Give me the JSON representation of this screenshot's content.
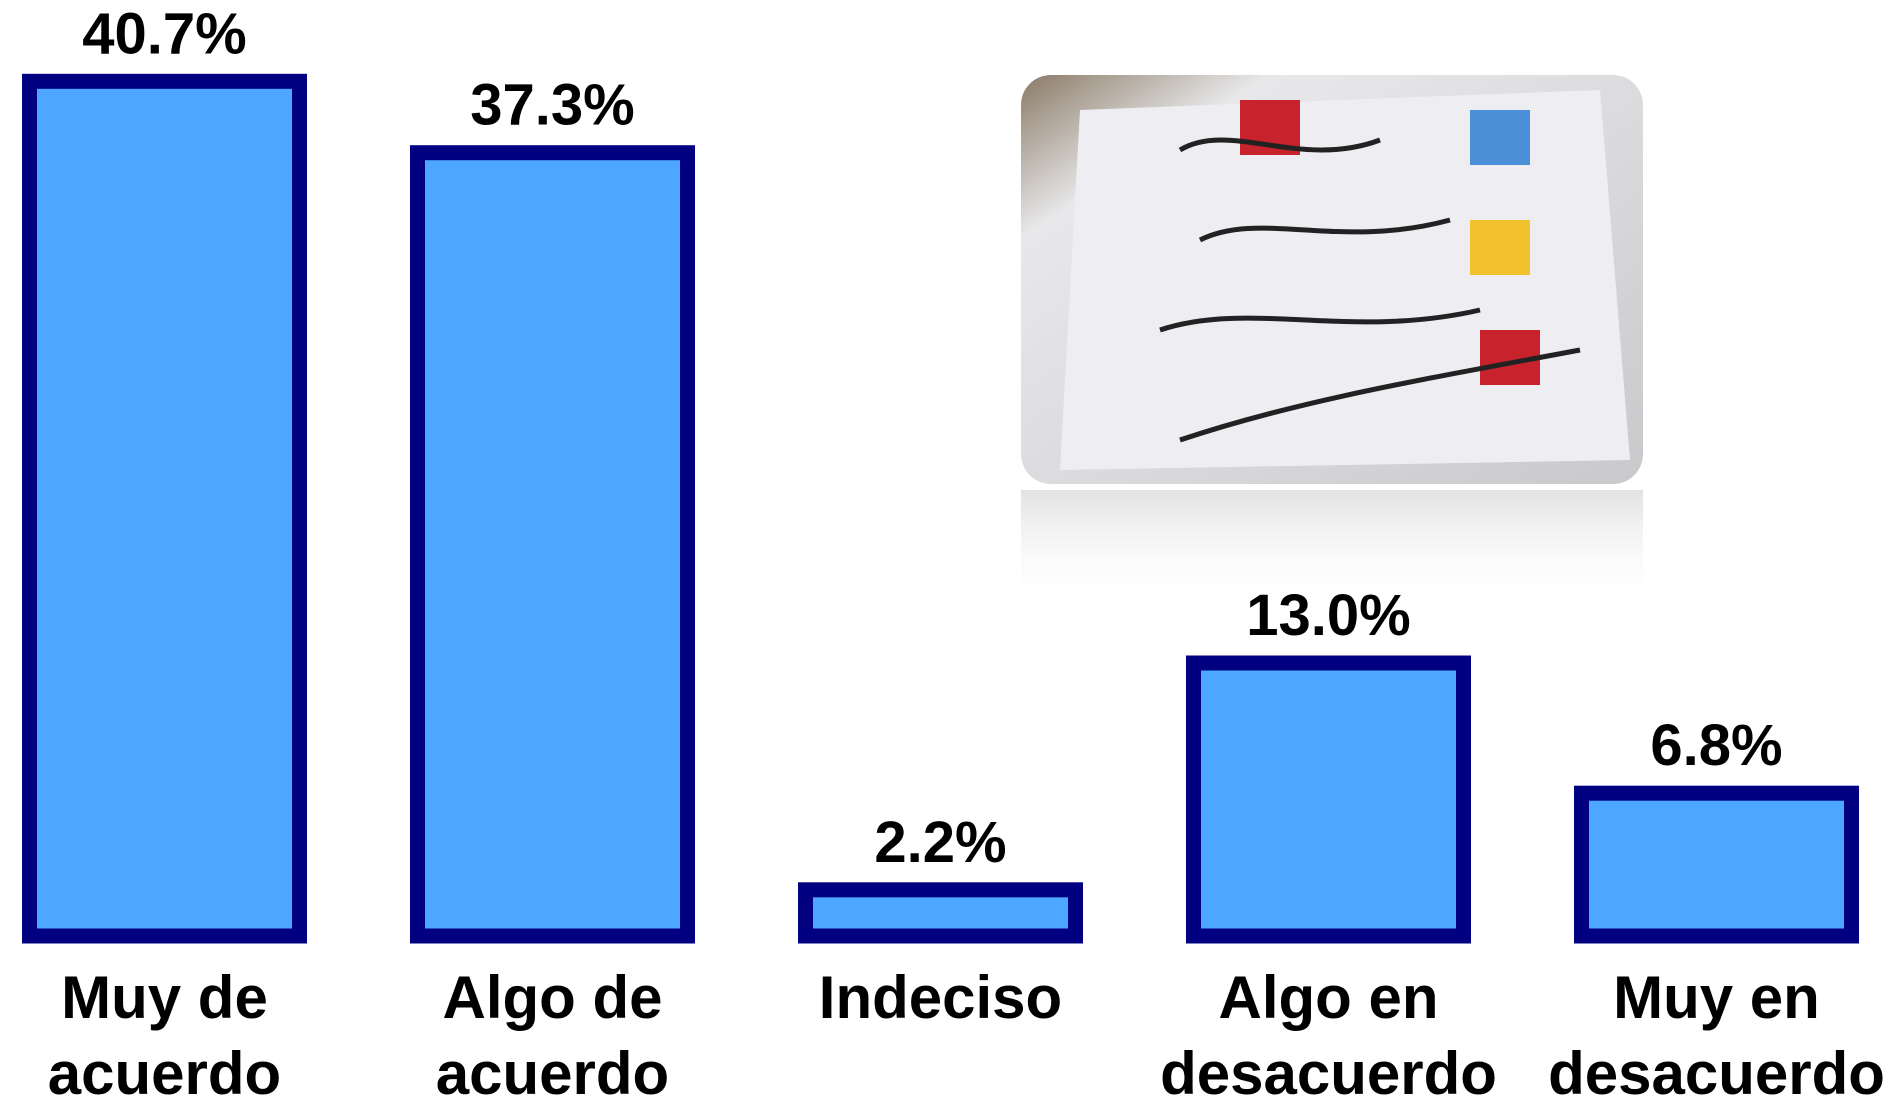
{
  "chart_data": {
    "type": "bar",
    "categories": [
      "Muy de acuerdo",
      "Algo de acuerdo",
      "Indeciso",
      "Algo en desacuerdo",
      "Muy en desacuerdo"
    ],
    "values": [
      40.7,
      37.3,
      2.2,
      13.0,
      6.8
    ],
    "value_labels": [
      "40.7%",
      "37.3%",
      "2.2%",
      "13.0%",
      "6.8%"
    ],
    "color": "#4da6ff",
    "edge_color": "#000080"
  }
}
